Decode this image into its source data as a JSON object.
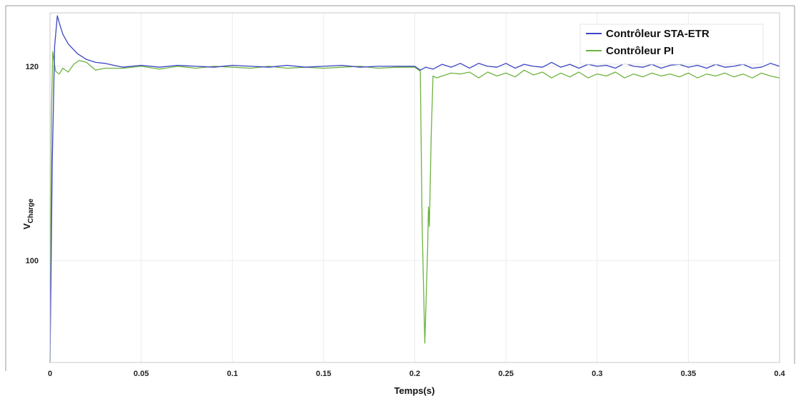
{
  "chart_data": {
    "type": "line",
    "title": "",
    "xlabel": "Temps(s)",
    "ylabel_main": "V",
    "ylabel_sub": "Charge",
    "xlim": [
      0,
      0.4
    ],
    "ylim": [
      89.5,
      125.5
    ],
    "grid": true,
    "legend_position": "top-right",
    "x_ticks": [
      0,
      0.05,
      0.1,
      0.15,
      0.2,
      0.25,
      0.3,
      0.35,
      0.4
    ],
    "x_tick_labels": [
      "0",
      "0.05",
      "0.1",
      "0.15",
      "0.2",
      "0.25",
      "0.3",
      "0.35",
      "0.4"
    ],
    "y_ticks": [
      100,
      120
    ],
    "y_tick_labels": [
      "100",
      "120"
    ],
    "series": [
      {
        "name": "Contrôleur STA-ETR",
        "color": "#3b46c4",
        "x": [
          0,
          0.0012,
          0.0025,
          0.004,
          0.005,
          0.007,
          0.01,
          0.015,
          0.02,
          0.025,
          0.03,
          0.035,
          0.04,
          0.05,
          0.06,
          0.07,
          0.08,
          0.09,
          0.1,
          0.11,
          0.12,
          0.13,
          0.14,
          0.15,
          0.16,
          0.17,
          0.18,
          0.19,
          0.2,
          0.203,
          0.206,
          0.21,
          0.215,
          0.22,
          0.225,
          0.23,
          0.235,
          0.24,
          0.245,
          0.25,
          0.255,
          0.26,
          0.265,
          0.27,
          0.275,
          0.28,
          0.285,
          0.29,
          0.295,
          0.3,
          0.305,
          0.31,
          0.315,
          0.32,
          0.325,
          0.33,
          0.335,
          0.34,
          0.345,
          0.35,
          0.355,
          0.36,
          0.365,
          0.37,
          0.375,
          0.38,
          0.385,
          0.39,
          0.395,
          0.4
        ],
        "y": [
          89.5,
          110,
          122,
          125.2,
          124.5,
          123.3,
          122.3,
          121.3,
          120.7,
          120.4,
          120.3,
          120.1,
          119.9,
          120.1,
          119.9,
          120.1,
          120.0,
          119.9,
          120.1,
          120.0,
          119.9,
          120.1,
          119.9,
          120.0,
          120.1,
          119.9,
          120.0,
          120.0,
          120.0,
          119.6,
          119.9,
          119.7,
          120.2,
          119.9,
          120.3,
          119.8,
          120.3,
          120.0,
          119.9,
          120.3,
          119.8,
          120.2,
          120.0,
          119.9,
          120.4,
          119.9,
          120.2,
          119.8,
          120.2,
          120.0,
          120.1,
          119.8,
          120.3,
          120.0,
          119.9,
          120.2,
          119.8,
          120.1,
          120.2,
          119.9,
          120.1,
          119.8,
          120.2,
          119.9,
          120.0,
          120.2,
          119.8,
          119.9,
          120.3,
          120.0
        ]
      },
      {
        "name": "Contrôleur PI",
        "color": "#6db33f",
        "x": [
          0,
          0.0008,
          0.0015,
          0.003,
          0.005,
          0.007,
          0.01,
          0.013,
          0.016,
          0.02,
          0.025,
          0.03,
          0.04,
          0.05,
          0.06,
          0.07,
          0.08,
          0.09,
          0.1,
          0.11,
          0.12,
          0.13,
          0.14,
          0.15,
          0.16,
          0.17,
          0.18,
          0.19,
          0.2,
          0.203,
          0.204,
          0.2055,
          0.207,
          0.2075,
          0.208,
          0.209,
          0.21,
          0.212,
          0.215,
          0.22,
          0.225,
          0.23,
          0.235,
          0.24,
          0.245,
          0.25,
          0.255,
          0.26,
          0.265,
          0.27,
          0.275,
          0.28,
          0.285,
          0.29,
          0.295,
          0.3,
          0.305,
          0.31,
          0.315,
          0.32,
          0.325,
          0.33,
          0.335,
          0.34,
          0.345,
          0.35,
          0.355,
          0.36,
          0.365,
          0.37,
          0.375,
          0.38,
          0.385,
          0.39,
          0.395,
          0.4
        ],
        "y": [
          89.5,
          115,
          121.5,
          119.5,
          119.2,
          119.8,
          119.4,
          120.2,
          120.6,
          120.4,
          119.6,
          119.8,
          119.8,
          120.0,
          119.7,
          120.0,
          119.8,
          120.0,
          119.9,
          119.8,
          120.0,
          119.8,
          119.9,
          119.8,
          119.9,
          120.0,
          119.8,
          119.9,
          119.9,
          119.5,
          104,
          91.5,
          101,
          105.5,
          103.5,
          113,
          119,
          118.8,
          119.0,
          119.3,
          119.2,
          119.4,
          118.8,
          119.4,
          119.0,
          119.3,
          118.9,
          119.6,
          119.1,
          119.4,
          118.8,
          119.3,
          118.9,
          119.4,
          118.8,
          119.2,
          119.0,
          119.4,
          118.8,
          119.2,
          118.9,
          119.3,
          119.0,
          119.2,
          118.9,
          119.3,
          118.8,
          119.2,
          119.0,
          119.3,
          118.9,
          119.2,
          118.8,
          119.3,
          119.0,
          118.8
        ]
      }
    ]
  }
}
